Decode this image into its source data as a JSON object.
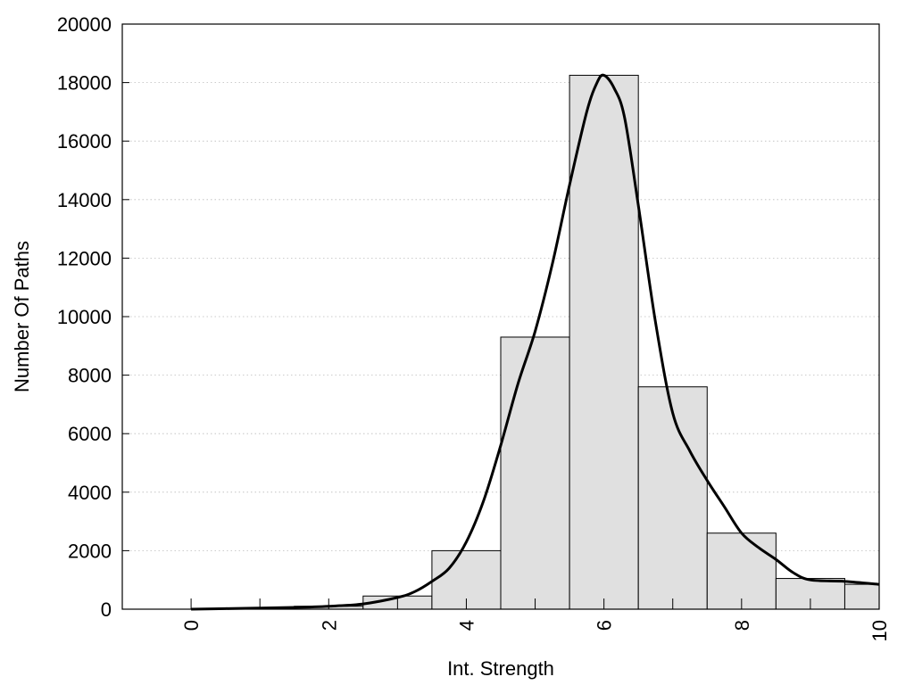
{
  "chart_data": {
    "type": "bar",
    "title": "",
    "xlabel": "Int. Strength",
    "ylabel": "Number Of Paths",
    "xlim": [
      -1,
      10
    ],
    "ylim": [
      0,
      20000
    ],
    "grid": true,
    "x_ticks": [
      0,
      2,
      4,
      6,
      8,
      10
    ],
    "y_ticks": [
      0,
      2000,
      4000,
      6000,
      8000,
      10000,
      12000,
      14000,
      16000,
      18000,
      20000
    ],
    "bins": [
      {
        "center": 0,
        "value": 0
      },
      {
        "center": 1,
        "value": 10
      },
      {
        "center": 2,
        "value": 100
      },
      {
        "center": 3,
        "value": 450
      },
      {
        "center": 4,
        "value": 2000
      },
      {
        "center": 5,
        "value": 9300
      },
      {
        "center": 6,
        "value": 18250
      },
      {
        "center": 7,
        "value": 7600
      },
      {
        "center": 8,
        "value": 2600
      },
      {
        "center": 9,
        "value": 1050
      },
      {
        "center": 10,
        "value": 850
      }
    ],
    "bin_width": 1,
    "bar_color": "#e0e0e0",
    "curve": {
      "x": [
        0,
        0.5,
        1,
        1.5,
        2,
        2.5,
        3,
        3.25,
        3.5,
        3.75,
        4,
        4.25,
        4.5,
        4.75,
        5,
        5.25,
        5.5,
        5.75,
        5.9,
        6,
        6.15,
        6.3,
        6.5,
        6.75,
        7,
        7.25,
        7.5,
        7.75,
        8,
        8.25,
        8.5,
        8.75,
        9,
        9.5,
        10
      ],
      "y": [
        0,
        20,
        40,
        60,
        100,
        180,
        400,
        600,
        950,
        1400,
        2300,
        3700,
        5600,
        7700,
        9500,
        11800,
        14500,
        17000,
        18000,
        18250,
        17800,
        16800,
        13800,
        9800,
        6700,
        5400,
        4400,
        3500,
        2600,
        2100,
        1700,
        1250,
        1000,
        950,
        850
      ]
    },
    "curve_color": "#000000"
  }
}
